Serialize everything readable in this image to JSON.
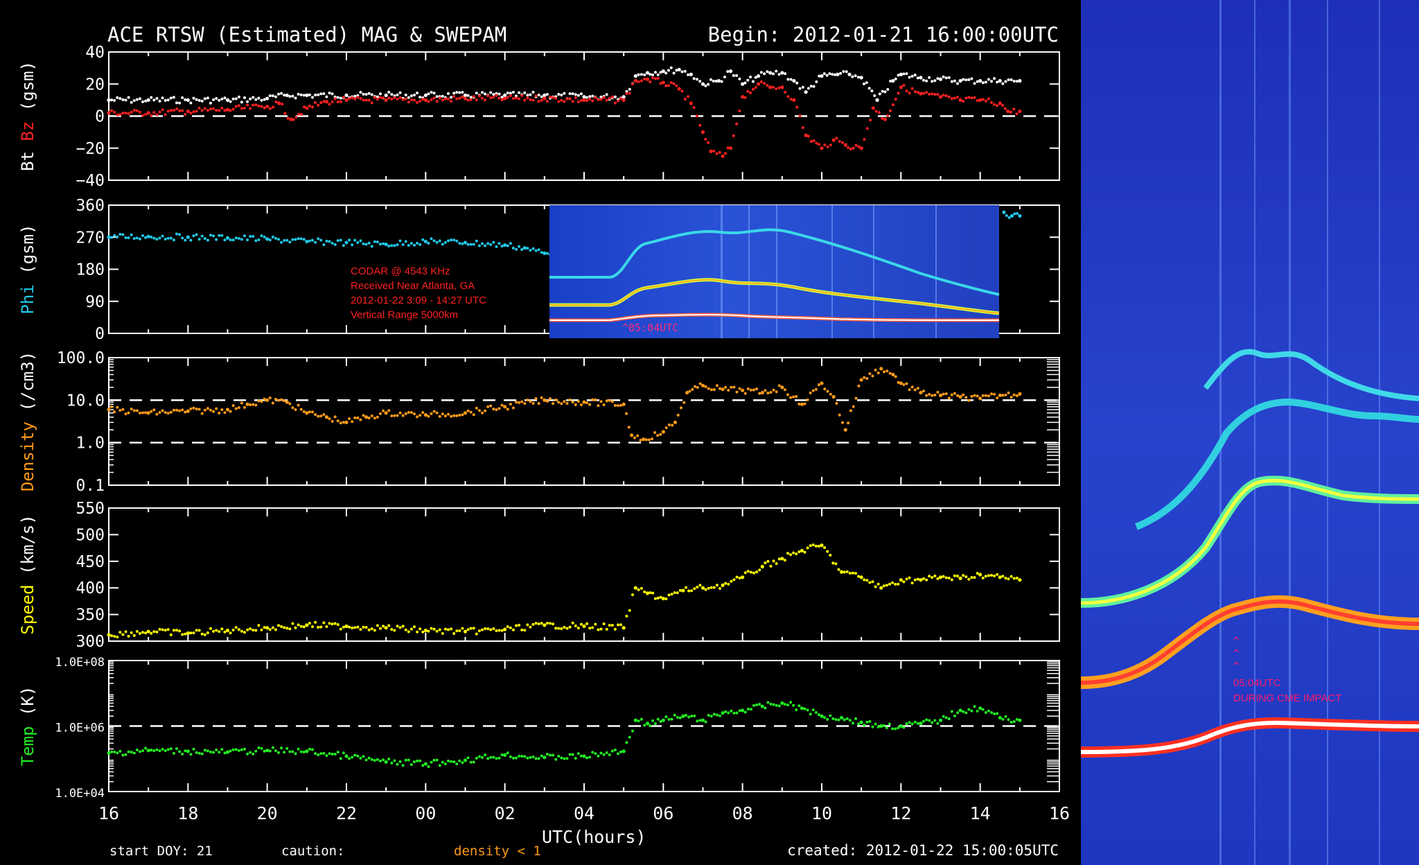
{
  "title": "ACE RTSW (Estimated) MAG & SWEPAM",
  "begin_label": "Begin: 2012-01-21 16:00:00UTC",
  "footer": {
    "start_doy": "start DOY:  21",
    "caution": "caution:",
    "density_caution": "density < 1",
    "created": "created: 2012-01-22 15:00:05UTC"
  },
  "x_axis": {
    "label": "UTC(hours)",
    "ticks": [
      "16",
      "18",
      "20",
      "22",
      "00",
      "02",
      "04",
      "06",
      "08",
      "10",
      "12",
      "14",
      "16"
    ]
  },
  "inset_annotation": {
    "lines": [
      "CODAR @ 4543 KHz",
      "Received Near Atlanta, GA",
      "2012-01-22   3:09 - 14:27 UTC",
      "Vertical Range 5000km"
    ],
    "marker": "^05:04UTC"
  },
  "right_annotation": {
    "carets": [
      "^",
      "^",
      "^"
    ],
    "time": "05:04UTC",
    "note": "DURING CME IMPACT"
  },
  "colors": {
    "bt": "#ffffff",
    "bz": "#ff2020",
    "phi": "#22c8e8",
    "density": "#ff9a1a",
    "speed": "#ffff00",
    "temp": "#22ee22",
    "annotation": "#ff2020",
    "annotation_right": "#ff1a6a"
  },
  "chart_data": [
    {
      "type": "scatter",
      "panel": "mag",
      "ylabel_parts": [
        "Bt",
        "Bz",
        "(gsm)"
      ],
      "ylim": [
        -40,
        40
      ],
      "yticks": [
        40,
        20,
        0,
        -20,
        -40
      ],
      "ytick_labels": [
        "40",
        "20",
        "0",
        "−20",
        "−40"
      ],
      "dashed_lines": [
        0
      ],
      "xlim": [
        16,
        39
      ],
      "series": [
        {
          "name": "Bt",
          "x": [
            16,
            17,
            18,
            19,
            20,
            20.5,
            21,
            22,
            23,
            24,
            25,
            26,
            27,
            28,
            29,
            29.3,
            29.6,
            30,
            30.4,
            30.7,
            31,
            31.4,
            31.7,
            32,
            32.4,
            32.7,
            33,
            33.3,
            33.6,
            34,
            34.4,
            34.7,
            35,
            35.4,
            35.8,
            36,
            36.5,
            37,
            37.5,
            38,
            38.5,
            39
          ],
          "y": [
            10,
            10,
            10,
            10,
            11,
            13,
            13,
            13,
            13,
            13,
            13,
            13,
            13,
            12,
            12,
            25,
            27,
            28,
            29,
            26,
            20,
            22,
            28,
            20,
            25,
            27,
            27,
            22,
            15,
            25,
            26,
            26,
            24,
            10,
            22,
            26,
            24,
            23,
            22,
            22,
            22,
            22
          ]
        },
        {
          "name": "Bz",
          "x": [
            16,
            17,
            18,
            19,
            20,
            20.3,
            20.6,
            21,
            21.5,
            22,
            23,
            24,
            25,
            26,
            27,
            28,
            29,
            29.3,
            29.6,
            30,
            30.4,
            30.7,
            31,
            31.2,
            31.5,
            31.7,
            32,
            32.4,
            32.7,
            33,
            33.3,
            33.6,
            34,
            34.3,
            34.6,
            35,
            35.3,
            35.6,
            36,
            36.5,
            37,
            37.5,
            38,
            38.5,
            38.7,
            39
          ],
          "y": [
            2,
            2,
            3,
            4,
            6,
            8,
            -2,
            5,
            9,
            10,
            10,
            10,
            11,
            11,
            11,
            10,
            10,
            22,
            23,
            21,
            17,
            8,
            -10,
            -22,
            -25,
            -20,
            12,
            20,
            18,
            18,
            10,
            -12,
            -20,
            -15,
            -18,
            -20,
            5,
            -2,
            18,
            14,
            12,
            10,
            10,
            8,
            3,
            3
          ]
        }
      ]
    },
    {
      "type": "scatter",
      "panel": "phi",
      "ylabel_parts": [
        "Phi",
        "(gsm)"
      ],
      "ylim": [
        0,
        360
      ],
      "yticks": [
        360,
        270,
        180,
        90,
        0
      ],
      "ytick_labels": [
        "360",
        "270",
        "180",
        "90",
        "0"
      ],
      "dashed_lines": [],
      "xlim": [
        16,
        39
      ],
      "series": [
        {
          "name": "Phi",
          "x": [
            16,
            17,
            18,
            19,
            20,
            21,
            22,
            23,
            24,
            25,
            26,
            26.5,
            27,
            27.5,
            38.6,
            38.8,
            39
          ],
          "y": [
            270,
            272,
            270,
            268,
            265,
            258,
            255,
            250,
            258,
            255,
            248,
            240,
            225,
            210,
            340,
            330,
            330
          ]
        }
      ]
    },
    {
      "type": "scatter",
      "panel": "density",
      "ylabel_parts": [
        "Density",
        "(/cm3)"
      ],
      "yscale": "log",
      "ylim": [
        0.1,
        100
      ],
      "yticks": [
        100,
        10,
        1,
        0.1
      ],
      "ytick_labels": [
        "100.0",
        "10.0",
        "1.0",
        "0.1"
      ],
      "dashed_lines": [
        10,
        1
      ],
      "xlim": [
        16,
        39
      ],
      "series": [
        {
          "name": "Density",
          "x": [
            16,
            17,
            18,
            19,
            19.5,
            20,
            20.5,
            21,
            21.5,
            22,
            22.5,
            23,
            24,
            25,
            26,
            27,
            28,
            29,
            29.2,
            29.5,
            30,
            30.3,
            30.6,
            31,
            31.5,
            32,
            32.5,
            33,
            33.5,
            34,
            34.3,
            34.6,
            35,
            35.5,
            35.8,
            36,
            36.5,
            37,
            37.5,
            38,
            38.5,
            39
          ],
          "y": [
            6,
            5,
            5.5,
            6,
            8,
            10,
            9,
            5,
            4,
            3,
            4,
            5,
            4.5,
            5,
            7,
            10,
            9,
            8,
            1.5,
            1.2,
            1.8,
            3,
            15,
            22,
            18,
            17,
            15,
            20,
            8,
            25,
            12,
            2,
            30,
            55,
            40,
            25,
            15,
            13,
            12,
            11,
            13,
            14
          ]
        }
      ]
    },
    {
      "type": "scatter",
      "panel": "speed",
      "ylabel_parts": [
        "Speed",
        "(km/s)"
      ],
      "ylim": [
        300,
        550
      ],
      "yticks": [
        550,
        500,
        450,
        400,
        350,
        300
      ],
      "ytick_labels": [
        "550",
        "500",
        "450",
        "400",
        "350",
        "300"
      ],
      "dashed_lines": [],
      "xlim": [
        16,
        39
      ],
      "series": [
        {
          "name": "Speed",
          "x": [
            16,
            17,
            18,
            19,
            20,
            21,
            22,
            23,
            24,
            25,
            26,
            27,
            28,
            29,
            29.3,
            29.6,
            30,
            30.5,
            31,
            31.5,
            32,
            32.5,
            33,
            33.5,
            34,
            34.5,
            35,
            35.5,
            36,
            36.5,
            37,
            37.5,
            38,
            38.5,
            39
          ],
          "y": [
            312,
            318,
            315,
            320,
            325,
            330,
            328,
            325,
            320,
            318,
            322,
            330,
            328,
            325,
            400,
            390,
            380,
            395,
            400,
            405,
            420,
            440,
            455,
            470,
            480,
            430,
            420,
            400,
            415,
            415,
            420,
            418,
            425,
            420,
            415
          ]
        }
      ]
    },
    {
      "type": "scatter",
      "panel": "temp",
      "ylabel_parts": [
        "Temp",
        "(K)"
      ],
      "yscale": "log",
      "ylim": [
        10000,
        100000000
      ],
      "yticks": [
        100000000,
        1000000,
        10000
      ],
      "ytick_labels": [
        "1.0E+08",
        "1.0E+06",
        "1.0E+04"
      ],
      "dashed_lines": [
        1000000
      ],
      "xlim": [
        16,
        39
      ],
      "series": [
        {
          "name": "Temp",
          "x": [
            16,
            17,
            18,
            19,
            20,
            21,
            22,
            23,
            24,
            25,
            26,
            27,
            28,
            29,
            29.3,
            29.6,
            30,
            30.5,
            31,
            31.5,
            32,
            32.5,
            33,
            33.5,
            34,
            34.5,
            35,
            35.5,
            36,
            36.5,
            37,
            37.5,
            38,
            38.5,
            39
          ],
          "y": [
            150000,
            180000,
            170000,
            160000,
            180000,
            170000,
            120000,
            80000,
            70000,
            90000,
            130000,
            110000,
            120000,
            170000,
            1500000,
            1200000,
            1500000,
            2000000,
            1500000,
            2500000,
            3000000,
            4000000,
            5000000,
            3500000,
            2000000,
            1800000,
            1300000,
            1000000,
            1000000,
            1200000,
            1500000,
            3000000,
            3500000,
            1800000,
            1500000
          ]
        }
      ]
    }
  ]
}
